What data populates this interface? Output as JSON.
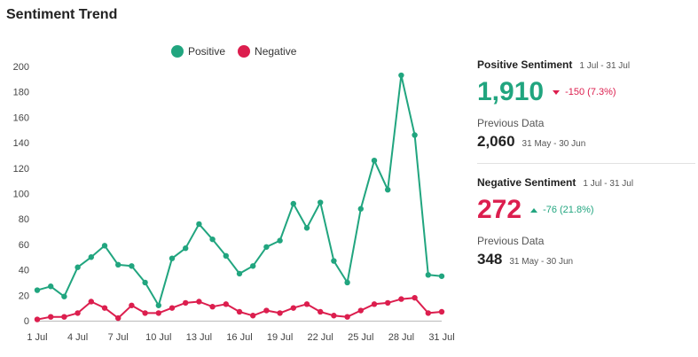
{
  "title": "Sentiment Trend",
  "colors": {
    "positive": "#21a57f",
    "negative": "#dc1e4e"
  },
  "positive": {
    "title": "Positive Sentiment",
    "range": "1 Jul - 31 Jul",
    "value": "1,910",
    "change": "-150 (7.3%)",
    "direction": "down",
    "previous_label": "Previous Data",
    "previous_value": "2,060",
    "previous_range": "31 May - 30 Jun"
  },
  "negative": {
    "title": "Negative Sentiment",
    "range": "1 Jul - 31 Jul",
    "value": "272",
    "change": "-76 (21.8%)",
    "direction": "up",
    "previous_label": "Previous Data",
    "previous_value": "348",
    "previous_range": "31 May - 30 Jun"
  },
  "chart_data": {
    "type": "line",
    "x": [
      "1 Jul",
      "2 Jul",
      "3 Jul",
      "4 Jul",
      "5 Jul",
      "6 Jul",
      "7 Jul",
      "8 Jul",
      "9 Jul",
      "10 Jul",
      "11 Jul",
      "12 Jul",
      "13 Jul",
      "14 Jul",
      "15 Jul",
      "16 Jul",
      "17 Jul",
      "18 Jul",
      "19 Jul",
      "20 Jul",
      "21 Jul",
      "22 Jul",
      "23 Jul",
      "24 Jul",
      "25 Jul",
      "26 Jul",
      "27 Jul",
      "28 Jul",
      "29 Jul",
      "30 Jul",
      "31 Jul"
    ],
    "xtick_labels": [
      "1 Jul",
      "4 Jul",
      "7 Jul",
      "10 Jul",
      "13 Jul",
      "16 Jul",
      "19 Jul",
      "22 Jul",
      "25 Jul",
      "28 Jul",
      "31 Jul"
    ],
    "yticks": [
      0,
      20,
      40,
      60,
      80,
      100,
      120,
      140,
      160,
      180,
      200
    ],
    "ylim": [
      0,
      200
    ],
    "grid": false,
    "legend": "top-center",
    "series": [
      {
        "name": "Positive",
        "color": "#21a57f",
        "values": [
          24,
          27,
          19,
          42,
          50,
          59,
          44,
          43,
          30,
          12,
          49,
          57,
          76,
          64,
          51,
          37,
          43,
          58,
          63,
          92,
          73,
          93,
          47,
          30,
          88,
          126,
          103,
          193,
          146,
          36,
          35
        ]
      },
      {
        "name": "Negative",
        "color": "#dc1e4e",
        "values": [
          1,
          3,
          3,
          6,
          15,
          10,
          2,
          12,
          6,
          6,
          10,
          14,
          15,
          11,
          13,
          7,
          4,
          8,
          6,
          10,
          13,
          7,
          4,
          3,
          8,
          13,
          14,
          17,
          18,
          6,
          7
        ]
      }
    ]
  }
}
